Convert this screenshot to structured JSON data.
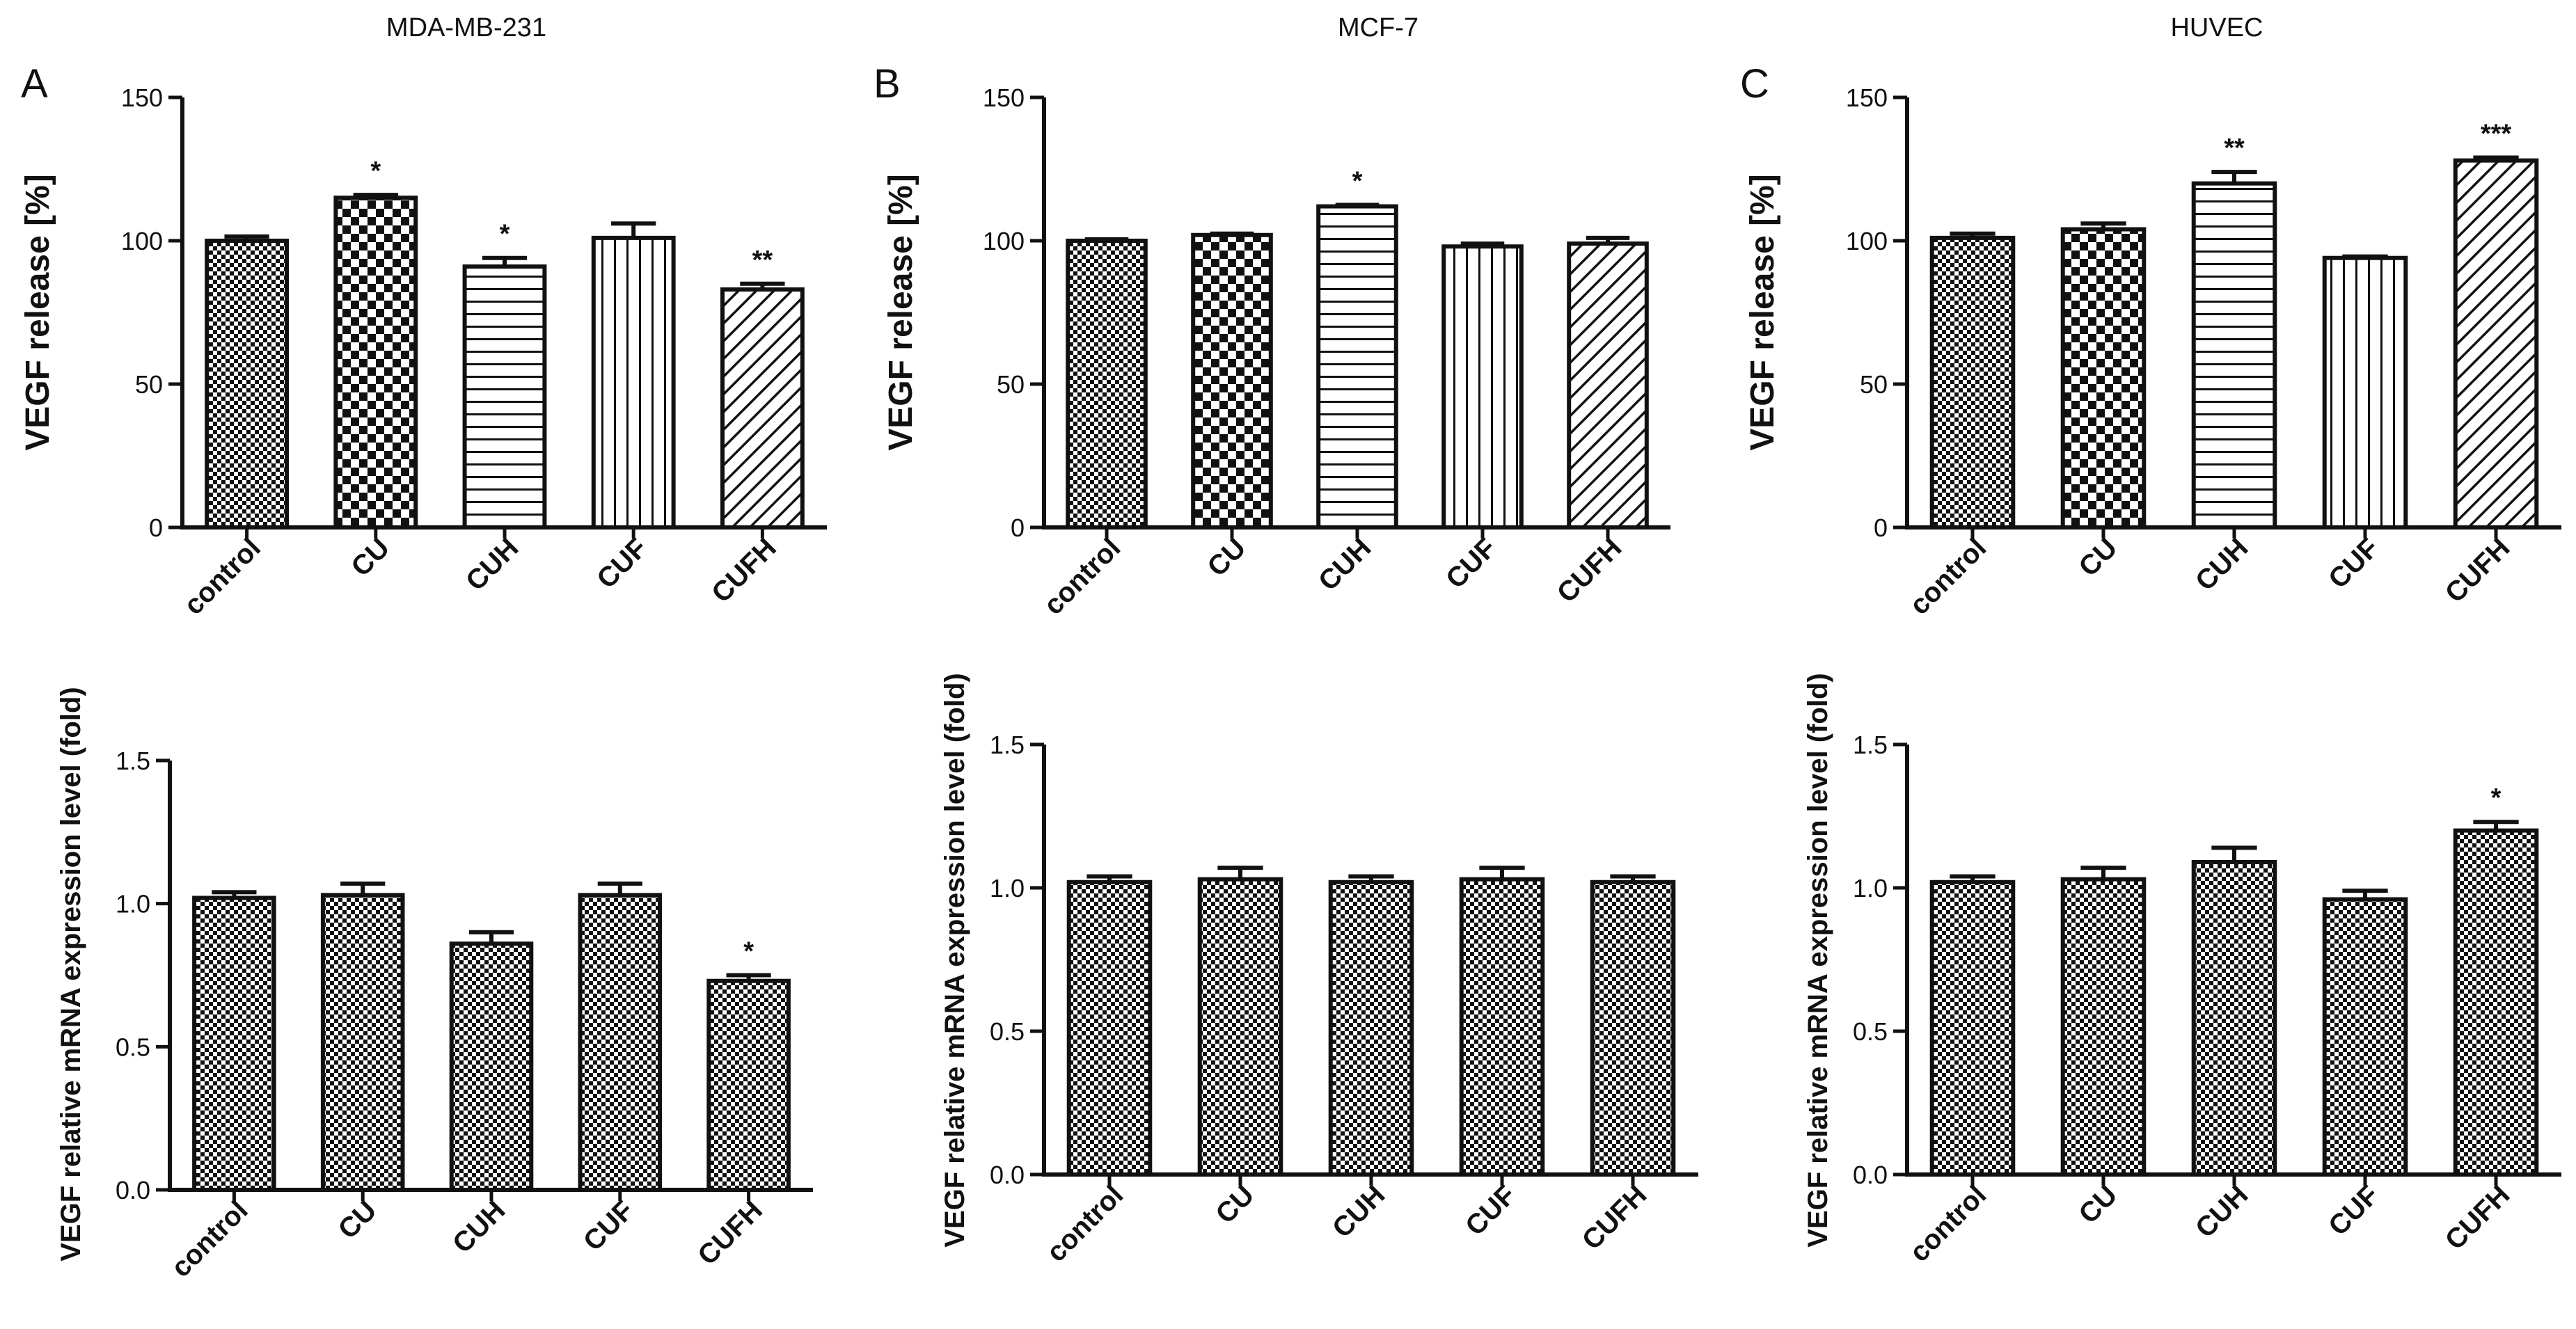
{
  "chart_data": [
    {
      "id": "A-top",
      "type": "bar",
      "panel_letter": "A",
      "title": "MDA-MB-231",
      "categories": [
        "control",
        "CU",
        "CUH",
        "CUF",
        "CUFH"
      ],
      "values": [
        100,
        115,
        91,
        101,
        83
      ],
      "errors": [
        1.5,
        1,
        3,
        5,
        2
      ],
      "significance": [
        "",
        "*",
        "*",
        "",
        "**"
      ],
      "ylabel": "VEGF release [%]",
      "ylim": [
        0,
        150
      ],
      "yticks": [
        "0",
        "50",
        "100",
        "150"
      ]
    },
    {
      "id": "B-top",
      "type": "bar",
      "panel_letter": "B",
      "title": "MCF-7",
      "categories": [
        "control",
        "CU",
        "CUH",
        "CUF",
        "CUFH"
      ],
      "values": [
        100,
        102,
        112,
        98,
        99
      ],
      "errors": [
        0.5,
        0.5,
        0.5,
        1,
        2
      ],
      "significance": [
        "",
        "",
        "*",
        "",
        ""
      ],
      "ylabel": "VEGF release [%]",
      "ylim": [
        0,
        150
      ],
      "yticks": [
        "0",
        "50",
        "100",
        "150"
      ]
    },
    {
      "id": "C-top",
      "type": "bar",
      "panel_letter": "C",
      "title": "HUVEC",
      "categories": [
        "control",
        "CU",
        "CUH",
        "CUF",
        "CUFH"
      ],
      "values": [
        101,
        104,
        120,
        94,
        128
      ],
      "errors": [
        1.5,
        2,
        4,
        0.5,
        1
      ],
      "significance": [
        "",
        "",
        "**",
        "",
        "***"
      ],
      "ylabel": "VEGF release [%]",
      "ylim": [
        0,
        150
      ],
      "yticks": [
        "0",
        "50",
        "100",
        "150"
      ]
    },
    {
      "id": "A-bottom",
      "type": "bar",
      "categories": [
        "control",
        "CU",
        "CUH",
        "CUF",
        "CUFH"
      ],
      "values": [
        1.02,
        1.03,
        0.86,
        1.03,
        0.73
      ],
      "errors": [
        0.02,
        0.04,
        0.04,
        0.04,
        0.02
      ],
      "significance": [
        "",
        "",
        "",
        "",
        "*"
      ],
      "ylabel": "VEGF relative mRNA expression level (fold)",
      "ylim": [
        0,
        1.5
      ],
      "yticks": [
        "0.0",
        "0.5",
        "1.0",
        "1.5"
      ]
    },
    {
      "id": "B-bottom",
      "type": "bar",
      "categories": [
        "control",
        "CU",
        "CUH",
        "CUF",
        "CUFH"
      ],
      "values": [
        1.02,
        1.03,
        1.02,
        1.03,
        1.02
      ],
      "errors": [
        0.02,
        0.04,
        0.02,
        0.04,
        0.02
      ],
      "significance": [
        "",
        "",
        "",
        "",
        ""
      ],
      "ylabel": "VEGF relative mRNA expression level (fold)",
      "ylim": [
        0,
        1.5
      ],
      "yticks": [
        "0.0",
        "0.5",
        "1.0",
        "1.5"
      ]
    },
    {
      "id": "C-bottom",
      "type": "bar",
      "categories": [
        "control",
        "CU",
        "CUH",
        "CUF",
        "CUFH"
      ],
      "values": [
        1.02,
        1.03,
        1.09,
        0.96,
        1.2
      ],
      "errors": [
        0.02,
        0.04,
        0.05,
        0.03,
        0.03
      ],
      "significance": [
        "",
        "",
        "",
        "",
        "*"
      ],
      "ylabel": "VEGF relative mRNA expression level (fold)",
      "ylim": [
        0,
        1.5
      ],
      "yticks": [
        "0.0",
        "0.5",
        "1.0",
        "1.5"
      ]
    }
  ],
  "patterns": {
    "top": [
      "checker",
      "checker-bold",
      "horizontal",
      "vertical",
      "diagonal"
    ],
    "bottom": [
      "checker",
      "checker",
      "checker",
      "checker",
      "checker"
    ]
  },
  "colors": {
    "ink": "#111111",
    "background": "#ffffff"
  }
}
